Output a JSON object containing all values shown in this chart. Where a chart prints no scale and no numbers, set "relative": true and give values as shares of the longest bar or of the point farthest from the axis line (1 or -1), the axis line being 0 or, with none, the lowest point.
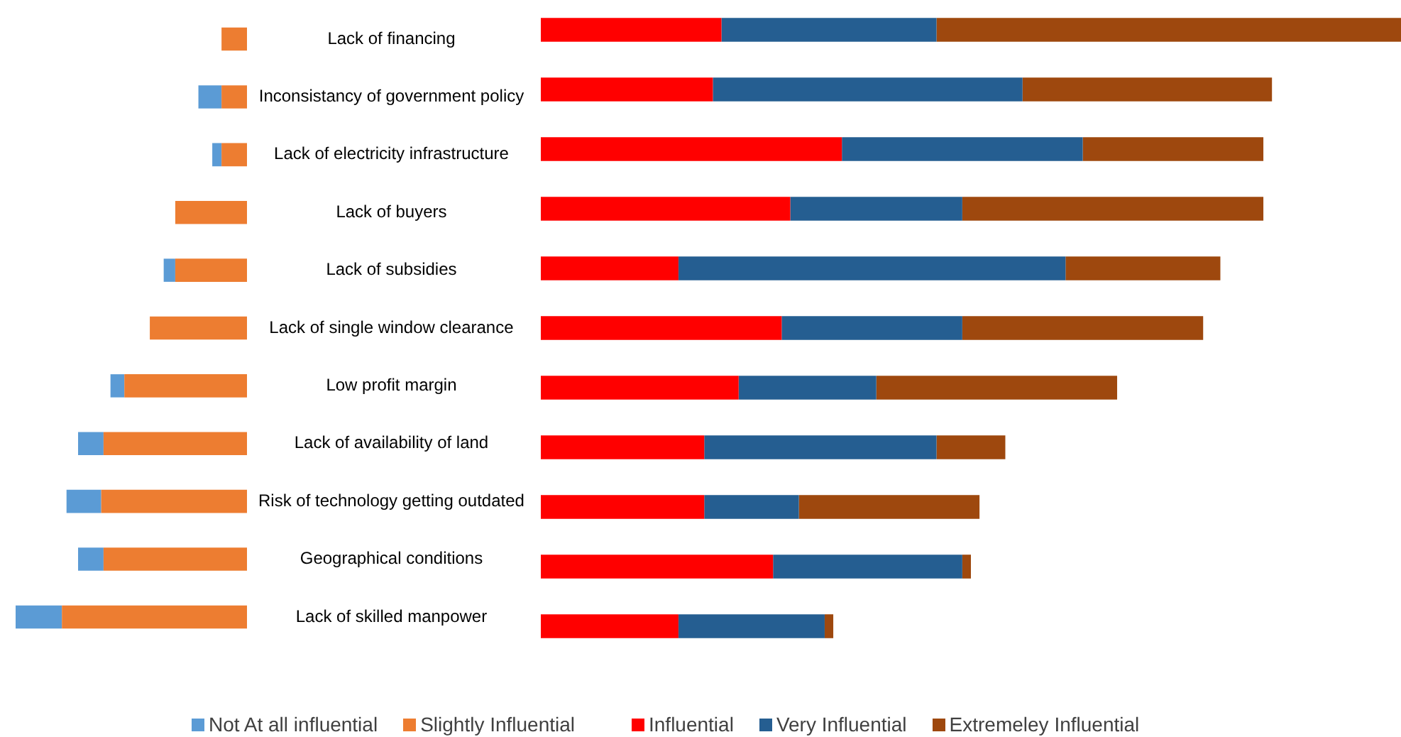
{
  "chart_data": [
    {
      "type": "bar",
      "orientation": "horizontal",
      "stacked": true,
      "relative": true,
      "legend": "bottom",
      "tick_labels": "y",
      "categories": [
        "Lack of financing",
        "Inconsistancy of government policy",
        "Lack of electricity infrastructure",
        "Lack of buyers",
        "Lack of subsidies",
        "Lack of single window clearance",
        "Low profit margin",
        "Lack of availability of land",
        "Risk of technology getting outdated",
        "Geographical conditions",
        "Lack of skilled manpower"
      ],
      "series": [
        {
          "name": "Slightly Influential",
          "color": "#ed7d31",
          "values": [
            -0.11,
            -0.11,
            -0.11,
            -0.31,
            -0.31,
            -0.42,
            -0.53,
            -0.62,
            -0.63,
            -0.62,
            -0.8
          ]
        },
        {
          "name": "Not At all influential",
          "color": "#5b9bd5",
          "values": [
            0,
            -0.1,
            -0.04,
            0,
            -0.05,
            0,
            -0.06,
            -0.11,
            -0.15,
            -0.11,
            -0.2
          ]
        }
      ]
    },
    {
      "type": "bar",
      "orientation": "horizontal",
      "stacked": true,
      "relative": true,
      "legend": "bottom",
      "tick_labels": false,
      "categories": [
        null,
        null,
        null,
        null,
        null,
        null,
        null,
        null,
        null,
        null,
        null
      ],
      "series": [
        {
          "name": "Influential",
          "color": "#ff0000",
          "values": [
            0.21,
            0.2,
            0.35,
            0.29,
            0.16,
            0.28,
            0.23,
            0.19,
            0.19,
            0.27,
            0.16
          ]
        },
        {
          "name": "Very Influential",
          "color": "#255e91",
          "values": [
            0.25,
            0.36,
            0.28,
            0.2,
            0.45,
            0.21,
            0.16,
            0.27,
            0.11,
            0.22,
            0.17
          ]
        },
        {
          "name": "Extremeley Influential",
          "color": "#9e480e",
          "values": [
            0.54,
            0.29,
            0.21,
            0.35,
            0.18,
            0.28,
            0.28,
            0.08,
            0.21,
            0.01,
            0.01
          ]
        }
      ]
    }
  ]
}
